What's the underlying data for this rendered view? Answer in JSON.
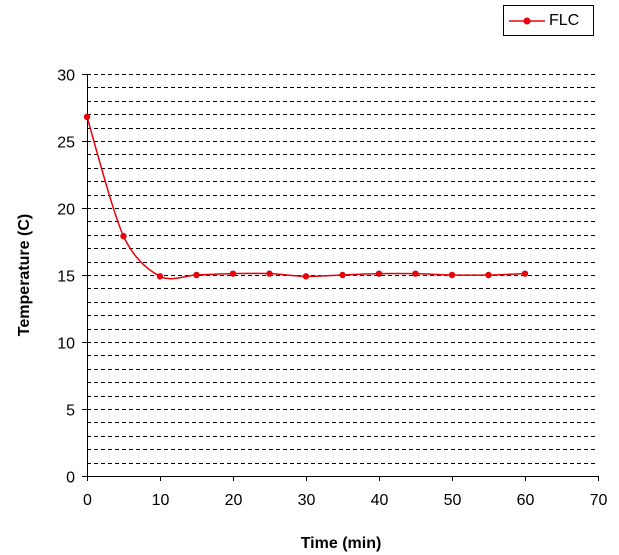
{
  "chart_data": {
    "type": "line",
    "title": "",
    "xlabel": "Time (min)",
    "ylabel": "Temperature (C)",
    "xlim": [
      0,
      70
    ],
    "ylim": [
      0,
      30
    ],
    "x_ticks": [
      0,
      10,
      20,
      30,
      40,
      50,
      60,
      70
    ],
    "y_ticks": [
      0,
      5,
      10,
      15,
      20,
      25,
      30
    ],
    "minor_grid_step": 1,
    "grid": true,
    "grid_style": "dashed",
    "legend_position": "top-right",
    "series": [
      {
        "name": "FLC",
        "color": "#e8000a",
        "marker": "circle",
        "x": [
          0,
          5,
          10,
          15,
          20,
          25,
          30,
          35,
          40,
          45,
          50,
          55,
          60
        ],
        "y": [
          26.8,
          17.9,
          14.9,
          15.0,
          15.1,
          15.1,
          14.9,
          15.0,
          15.1,
          15.1,
          15.0,
          15.0,
          15.1
        ]
      }
    ]
  }
}
